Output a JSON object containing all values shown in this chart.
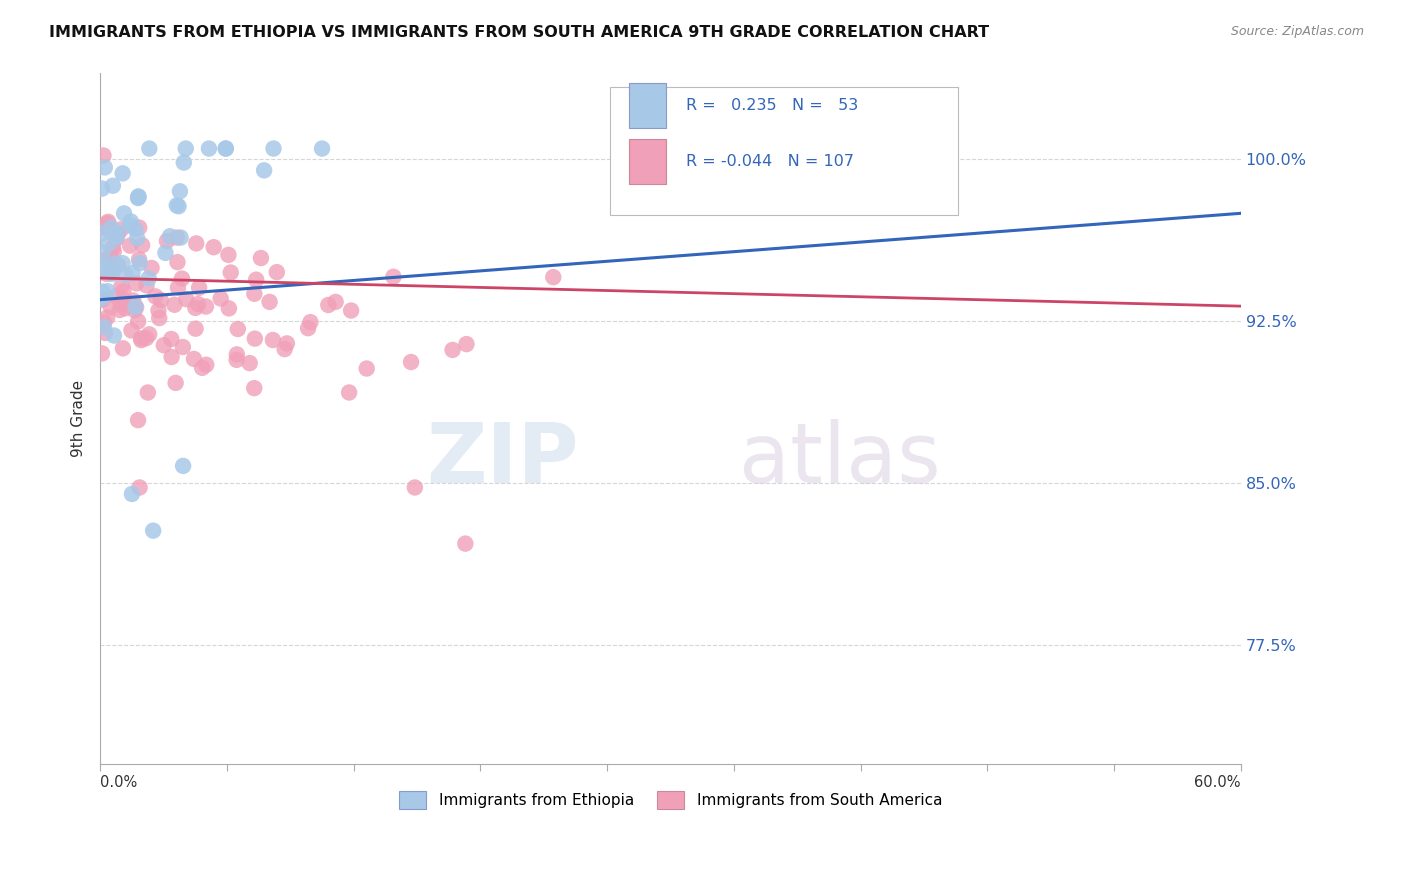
{
  "title": "IMMIGRANTS FROM ETHIOPIA VS IMMIGRANTS FROM SOUTH AMERICA 9TH GRADE CORRELATION CHART",
  "source": "Source: ZipAtlas.com",
  "ylabel": "9th Grade",
  "ytick_labels": [
    "77.5%",
    "85.0%",
    "92.5%",
    "100.0%"
  ],
  "ytick_values": [
    0.775,
    0.85,
    0.925,
    1.0
  ],
  "xlim": [
    0.0,
    0.6
  ],
  "ylim": [
    0.72,
    1.04
  ],
  "r_ethiopia": "0.235",
  "n_ethiopia": "53",
  "r_south_america": "-0.044",
  "n_south_america": "107",
  "legend_label_1": "Immigrants from Ethiopia",
  "legend_label_2": "Immigrants from South America",
  "color_ethiopia": "#a8c8e8",
  "color_south_america": "#f0a0b8",
  "trend_color_ethiopia": "#3366bb",
  "trend_color_south_america": "#cc4466",
  "background_color": "#ffffff",
  "eth_trend_x0": 0.0,
  "eth_trend_y0": 0.935,
  "eth_trend_x1": 0.6,
  "eth_trend_y1": 0.975,
  "sa_trend_x0": 0.0,
  "sa_trend_y0": 0.945,
  "sa_trend_x1": 0.6,
  "sa_trend_y1": 0.932
}
